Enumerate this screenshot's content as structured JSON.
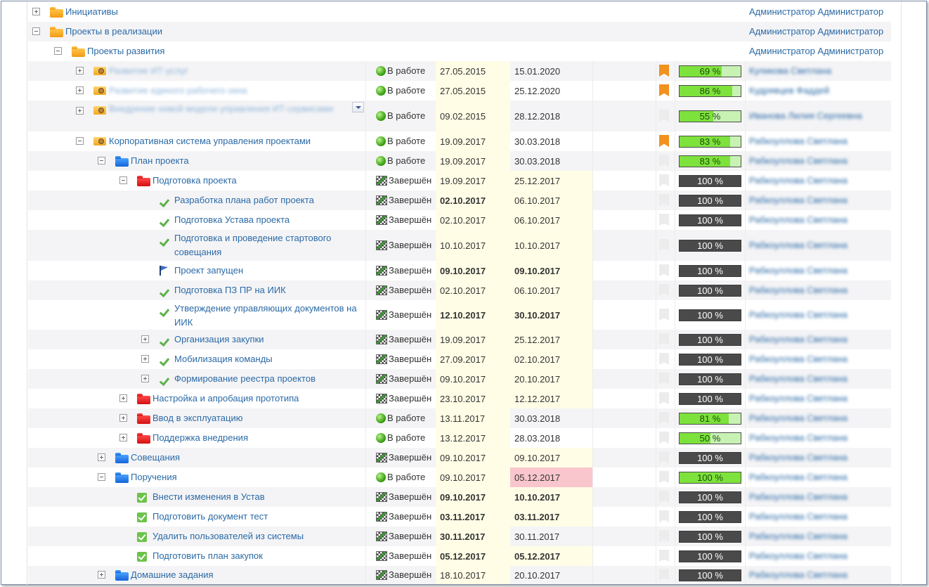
{
  "top_rows": [
    {
      "label": "Инициативы",
      "owner": "Администратор Администратор"
    },
    {
      "label": "Проекты в реализации",
      "owner": "Администратор Администратор"
    },
    {
      "label": "Проекты развития",
      "owner": "Администратор Администратор"
    }
  ],
  "projects": [
    {
      "label": "Развитие ИТ-услуг",
      "status": "В работе",
      "start": "27.05.2015",
      "end": "15.01.2020",
      "progress": "69 %",
      "progress_value": 69,
      "owner": "Куликова Светлана"
    },
    {
      "label": "Развитие единого рабочего окна",
      "status": "В работе",
      "start": "27.05.2015",
      "end": "25.12.2020",
      "progress": "86 %",
      "progress_value": 86,
      "owner": "Кудрявцев Фаддей"
    },
    {
      "label": "Внедрение новой модели управления ИТ-сервисами",
      "status": "В работе",
      "start": "09.02.2015",
      "end": "28.12.2018",
      "progress": "55 %",
      "progress_value": 55,
      "owner": "Иванова Лилия Сергеевна"
    },
    {
      "label": "Корпоративная система управления проектами",
      "status": "В работе",
      "start": "19.09.2017",
      "end": "30.03.2018",
      "progress": "83 %",
      "progress_value": 83,
      "owner": "Рабкоуллова Светлана"
    }
  ],
  "plan": {
    "label": "План проекта",
    "status": "В работе",
    "start": "19.09.2017",
    "end": "30.03.2018",
    "progress": "83 %",
    "progress_value": 83,
    "owner": "Рабкоуллова Светлана"
  },
  "prep": {
    "label": "Подготовка проекта",
    "status": "Завершён",
    "start": "19.09.2017",
    "end": "25.12.2017",
    "progress": "100 %",
    "owner": "Рабкоуллова Светлана"
  },
  "tasks": [
    {
      "label": "Разработка плана работ проекта",
      "status": "Завершён",
      "start": "02.10.2017",
      "end": "06.10.2017",
      "progress": "100 %",
      "owner": "Рабкоуллова Светлана"
    },
    {
      "label": "Подготовка Устава проекта",
      "status": "Завершён",
      "start": "02.10.2017",
      "end": "06.10.2017",
      "progress": "100 %",
      "owner": "Рабкоуллова Светлана"
    },
    {
      "label": "Подготовка и проведение стартового совещания",
      "status": "Завершён",
      "start": "10.10.2017",
      "end": "10.10.2017",
      "progress": "100 %",
      "owner": "Рабкоуллова Светлана"
    },
    {
      "label": "Проект запущен",
      "status": "Завершён",
      "start": "09.10.2017",
      "end": "09.10.2017",
      "progress": "100 %",
      "owner": "Рабкоуллова Светлана"
    },
    {
      "label": "Подготовка ПЗ ПР на ИИК",
      "status": "Завершён",
      "start": "02.10.2017",
      "end": "06.10.2017",
      "progress": "100 %",
      "owner": "Рабкоуллова Светлана"
    },
    {
      "label": "Утверждение управляющих документов на ИИК",
      "status": "Завершён",
      "start": "12.10.2017",
      "end": "30.10.2017",
      "progress": "100 %",
      "owner": "Рабкоуллова Светлана"
    },
    {
      "label": "Организация закупки",
      "status": "Завершён",
      "start": "19.09.2017",
      "end": "25.12.2017",
      "progress": "100 %",
      "owner": "Рабкоуллова Светлана"
    },
    {
      "label": "Мобилизация команды",
      "status": "Завершён",
      "start": "27.09.2017",
      "end": "02.10.2017",
      "progress": "100 %",
      "owner": "Рабкоуллова Светлана"
    },
    {
      "label": "Формирование реестра проектов",
      "status": "Завершён",
      "start": "09.10.2017",
      "end": "20.10.2017",
      "progress": "100 %",
      "owner": "Рабкоуллова Светлана"
    }
  ],
  "phases": [
    {
      "label": "Настройка и апробация прототипа",
      "status": "Завершён",
      "start": "23.10.2017",
      "end": "12.12.2017",
      "progress": "100 %",
      "owner": "Рабкоуллова Светлана"
    },
    {
      "label": "Ввод в эксплуатацию",
      "status": "В работе",
      "start": "13.11.2017",
      "end": "30.03.2018",
      "progress": "81 %",
      "progress_value": 81,
      "owner": "Рабкоуллова Светлана"
    },
    {
      "label": "Поддержка внедрения",
      "status": "В работе",
      "start": "13.12.2017",
      "end": "28.03.2018",
      "progress": "50 %",
      "progress_value": 50,
      "owner": "Рабкоуллова Светлана"
    }
  ],
  "meetings": {
    "label": "Совещания",
    "status": "Завершён",
    "start": "09.10.2017",
    "end": "09.10.2017",
    "progress": "100 %",
    "owner": "Рабкоуллова Светлана"
  },
  "orders": {
    "label": "Поручения",
    "status": "В работе",
    "start": "09.10.2017",
    "end": "05.12.2017",
    "progress": "100 %",
    "progress_value": 100,
    "owner": "Рабкоуллова Светлана"
  },
  "order_items": [
    {
      "label": "Внести изменения в Устав",
      "status": "Завершён",
      "start": "09.10.2017",
      "end": "10.10.2017",
      "progress": "100 %",
      "owner": "Рабкоуллова Светлана"
    },
    {
      "label": "Подготовить документ тест",
      "status": "Завершён",
      "start": "03.11.2017",
      "end": "03.11.2017",
      "progress": "100 %",
      "owner": "Рабкоуллова Светлана"
    },
    {
      "label": "Удалить пользователей из системы",
      "status": "Завершён",
      "start": "30.11.2017",
      "end": "30.11.2017",
      "progress": "100 %",
      "owner": "Рабкоуллова Светлана"
    },
    {
      "label": "Подготовить план закупок",
      "status": "Завершён",
      "start": "05.12.2017",
      "end": "05.12.2017",
      "progress": "100 %",
      "owner": "Рабкоуллова Светлана"
    }
  ],
  "homework": {
    "label": "Домашние задания",
    "status": "Завершён",
    "start": "18.10.2017",
    "end": "20.10.2017",
    "progress": "100 %",
    "owner": "Рабкоуллова Светлана"
  }
}
